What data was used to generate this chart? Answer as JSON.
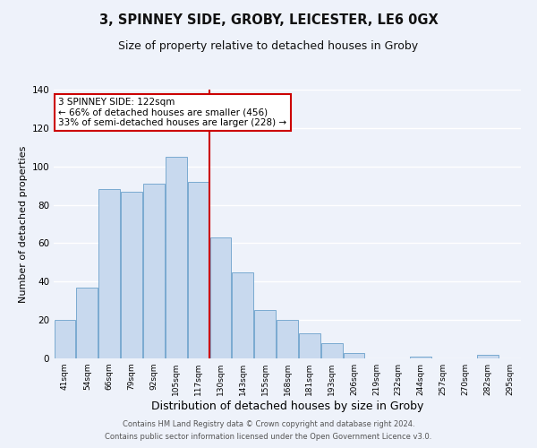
{
  "title": "3, SPINNEY SIDE, GROBY, LEICESTER, LE6 0GX",
  "subtitle": "Size of property relative to detached houses in Groby",
  "xlabel": "Distribution of detached houses by size in Groby",
  "ylabel": "Number of detached properties",
  "categories": [
    "41sqm",
    "54sqm",
    "66sqm",
    "79sqm",
    "92sqm",
    "105sqm",
    "117sqm",
    "130sqm",
    "143sqm",
    "155sqm",
    "168sqm",
    "181sqm",
    "193sqm",
    "206sqm",
    "219sqm",
    "232sqm",
    "244sqm",
    "257sqm",
    "270sqm",
    "282sqm",
    "295sqm"
  ],
  "values": [
    20,
    37,
    88,
    87,
    91,
    105,
    92,
    63,
    45,
    25,
    20,
    13,
    8,
    3,
    0,
    0,
    1,
    0,
    0,
    2,
    0
  ],
  "bar_color": "#c8d9ee",
  "bar_edge_color": "#7aaad0",
  "vline_x": 6.5,
  "vline_color": "#cc0000",
  "ylim": [
    0,
    140
  ],
  "yticks": [
    0,
    20,
    40,
    60,
    80,
    100,
    120,
    140
  ],
  "annotation_text": "3 SPINNEY SIDE: 122sqm\n← 66% of detached houses are smaller (456)\n33% of semi-detached houses are larger (228) →",
  "annotation_box_color": "#ffffff",
  "annotation_box_edge": "#cc0000",
  "footer1": "Contains HM Land Registry data © Crown copyright and database right 2024.",
  "footer2": "Contains public sector information licensed under the Open Government Licence v3.0.",
  "title_fontsize": 10.5,
  "subtitle_fontsize": 9,
  "ylabel_fontsize": 8,
  "xlabel_fontsize": 9,
  "annotation_fontsize": 7.5,
  "footer_fontsize": 6,
  "background_color": "#eef2fa",
  "grid_color": "#ffffff"
}
